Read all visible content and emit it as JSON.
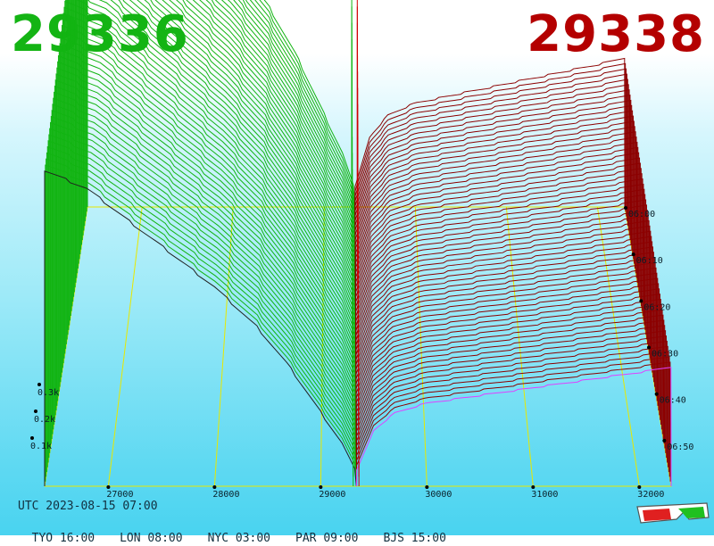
{
  "header": {
    "bid_price": "29336",
    "ask_price": "29338"
  },
  "colors": {
    "bid": "#14b414",
    "ask": "#b40000",
    "bid_line": "#12b412",
    "ask_line": "#8c0000",
    "grid": "#e8e800",
    "base": "#202020",
    "highlight": "#e040ff"
  },
  "footer": {
    "utc": "UTC 2023-08-15 07:00",
    "zones": [
      "TYO 16:00",
      "LON 08:00",
      "NYC 03:00",
      "PAR 09:00",
      "BJS 15:00"
    ]
  },
  "chart_data": {
    "type": "area",
    "title": "",
    "xlabel": "",
    "ylabel": "",
    "x_ticks": [
      27000,
      28000,
      29000,
      30000,
      31000,
      32000
    ],
    "x_tick_labels": [
      "27000",
      "28000",
      "29000",
      "30000",
      "31000",
      "32000"
    ],
    "time_ticks": [
      "06:00",
      "06:10",
      "06:20",
      "06:30",
      "06:40",
      "06:50"
    ],
    "volume_ticks": [
      "0.1k",
      "0.2k",
      "0.3k"
    ],
    "xlim": [
      26400,
      32300
    ],
    "ylim": [
      0,
      0.5
    ],
    "time_range": [
      "06:00",
      "07:00"
    ],
    "snapshots": 60,
    "mid_price": 29337,
    "series": [
      {
        "name": "bid",
        "x": [
          29336,
          29200,
          29000,
          28700,
          28400,
          28000,
          27600,
          27200,
          26800,
          26400
        ],
        "values": [
          0.02,
          0.06,
          0.1,
          0.16,
          0.21,
          0.26,
          0.3,
          0.34,
          0.38,
          0.4
        ]
      },
      {
        "name": "ask",
        "x": [
          29338,
          29500,
          29700,
          30000,
          30400,
          30800,
          31200,
          31600,
          32000,
          32300
        ],
        "values": [
          0.02,
          0.07,
          0.09,
          0.1,
          0.105,
          0.11,
          0.115,
          0.12,
          0.125,
          0.13
        ]
      }
    ]
  },
  "icons": {
    "glasses": "3d-glasses-icon"
  }
}
